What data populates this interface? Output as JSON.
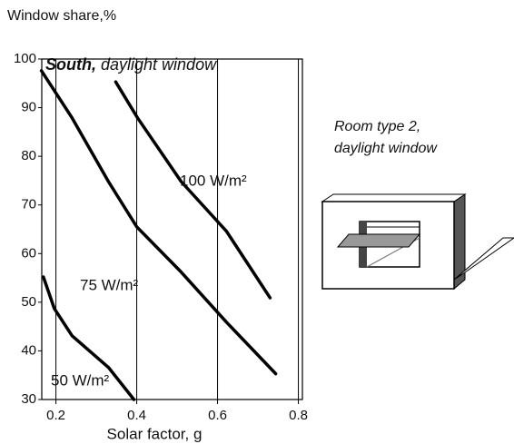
{
  "chart_data": {
    "type": "line",
    "y_label": "Window share,%",
    "x_label": "Solar factor, g",
    "title_bold": "South,",
    "title": "daylight window",
    "note": [
      "Room type 2,",
      "daylight window"
    ],
    "xlim": [
      0.165,
      0.81
    ],
    "ylim": [
      30,
      100
    ],
    "xticks": [
      0.2,
      0.4,
      0.6,
      0.8
    ],
    "yticks": [
      30,
      40,
      50,
      60,
      70,
      80,
      90,
      100
    ],
    "grid": true,
    "series": [
      {
        "name": "100 W/m²",
        "color": "#000000",
        "x": [
          0.348,
          0.402,
          0.51,
          0.622,
          0.73
        ],
        "values": [
          95.3,
          87.9,
          74.8,
          64.6,
          50.9
        ]
      },
      {
        "name": "75 W/m²",
        "color": "#000000",
        "x": [
          0.164,
          0.24,
          0.33,
          0.4,
          0.51,
          0.622,
          0.744
        ],
        "values": [
          97.6,
          87.9,
          74.8,
          65.5,
          56.2,
          45.9,
          35.3
        ]
      },
      {
        "name": "50 W/m²",
        "color": "#000000",
        "x": [
          0.169,
          0.196,
          0.24,
          0.33,
          0.393
        ],
        "values": [
          55.2,
          48.7,
          43.1,
          36.6,
          30
        ]
      }
    ]
  }
}
